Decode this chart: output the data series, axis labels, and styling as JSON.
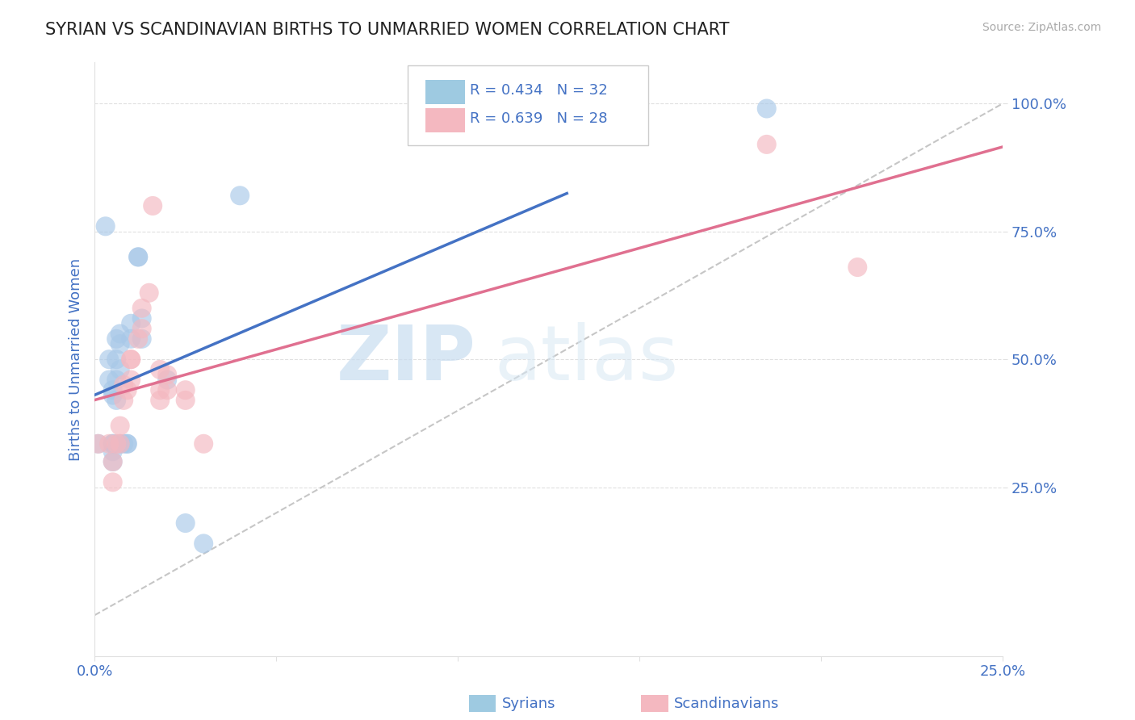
{
  "title": "SYRIAN VS SCANDINAVIAN BIRTHS TO UNMARRIED WOMEN CORRELATION CHART",
  "source": "Source: ZipAtlas.com",
  "ylabel": "Births to Unmarried Women",
  "xmin": 0.0,
  "xmax": 0.25,
  "ymin": -0.08,
  "ymax": 1.08,
  "x_ticks": [
    0.0,
    0.05,
    0.1,
    0.15,
    0.2,
    0.25
  ],
  "x_tick_labels": [
    "0.0%",
    "",
    "",
    "",
    "",
    "25.0%"
  ],
  "y_ticks": [
    0.25,
    0.5,
    0.75,
    1.0
  ],
  "y_tick_labels": [
    "25.0%",
    "50.0%",
    "75.0%",
    "100.0%"
  ],
  "syrian_R": 0.434,
  "syrian_N": 32,
  "scand_R": 0.639,
  "scand_N": 28,
  "syrian_color": "#a8c8e8",
  "scand_color": "#f4b8c0",
  "syrian_line_color": "#4472c4",
  "scand_line_color": "#e07090",
  "ref_line_color": "#c0c0c0",
  "background_color": "#ffffff",
  "grid_color": "#e0e0e0",
  "text_color": "#4472c4",
  "legend_box_color_syrian": "#9ecae1",
  "legend_box_color_scand": "#f4b8c0",
  "watermark": "ZIPatlas",
  "legend_labels": [
    "Syrians",
    "Scandinavians"
  ],
  "syrian_points": [
    [
      0.001,
      0.335
    ],
    [
      0.003,
      0.76
    ],
    [
      0.004,
      0.5
    ],
    [
      0.004,
      0.46
    ],
    [
      0.005,
      0.43
    ],
    [
      0.005,
      0.44
    ],
    [
      0.005,
      0.335
    ],
    [
      0.005,
      0.335
    ],
    [
      0.005,
      0.32
    ],
    [
      0.005,
      0.3
    ],
    [
      0.006,
      0.54
    ],
    [
      0.006,
      0.5
    ],
    [
      0.006,
      0.46
    ],
    [
      0.006,
      0.42
    ],
    [
      0.007,
      0.55
    ],
    [
      0.007,
      0.53
    ],
    [
      0.007,
      0.48
    ],
    [
      0.007,
      0.335
    ],
    [
      0.008,
      0.335
    ],
    [
      0.009,
      0.335
    ],
    [
      0.009,
      0.335
    ],
    [
      0.01,
      0.57
    ],
    [
      0.01,
      0.54
    ],
    [
      0.012,
      0.7
    ],
    [
      0.012,
      0.7
    ],
    [
      0.013,
      0.58
    ],
    [
      0.013,
      0.54
    ],
    [
      0.02,
      0.46
    ],
    [
      0.025,
      0.18
    ],
    [
      0.03,
      0.14
    ],
    [
      0.04,
      0.82
    ],
    [
      0.185,
      0.99
    ]
  ],
  "scand_points": [
    [
      0.001,
      0.335
    ],
    [
      0.004,
      0.335
    ],
    [
      0.005,
      0.26
    ],
    [
      0.005,
      0.3
    ],
    [
      0.006,
      0.335
    ],
    [
      0.007,
      0.335
    ],
    [
      0.007,
      0.37
    ],
    [
      0.008,
      0.42
    ],
    [
      0.008,
      0.45
    ],
    [
      0.009,
      0.44
    ],
    [
      0.01,
      0.5
    ],
    [
      0.01,
      0.5
    ],
    [
      0.01,
      0.46
    ],
    [
      0.012,
      0.54
    ],
    [
      0.013,
      0.6
    ],
    [
      0.013,
      0.56
    ],
    [
      0.015,
      0.63
    ],
    [
      0.016,
      0.8
    ],
    [
      0.018,
      0.42
    ],
    [
      0.018,
      0.44
    ],
    [
      0.018,
      0.48
    ],
    [
      0.02,
      0.44
    ],
    [
      0.02,
      0.47
    ],
    [
      0.025,
      0.42
    ],
    [
      0.025,
      0.44
    ],
    [
      0.03,
      0.335
    ],
    [
      0.185,
      0.92
    ],
    [
      0.21,
      0.68
    ]
  ],
  "ref_line": [
    [
      0.0,
      0.0
    ],
    [
      0.25,
      1.0
    ]
  ]
}
